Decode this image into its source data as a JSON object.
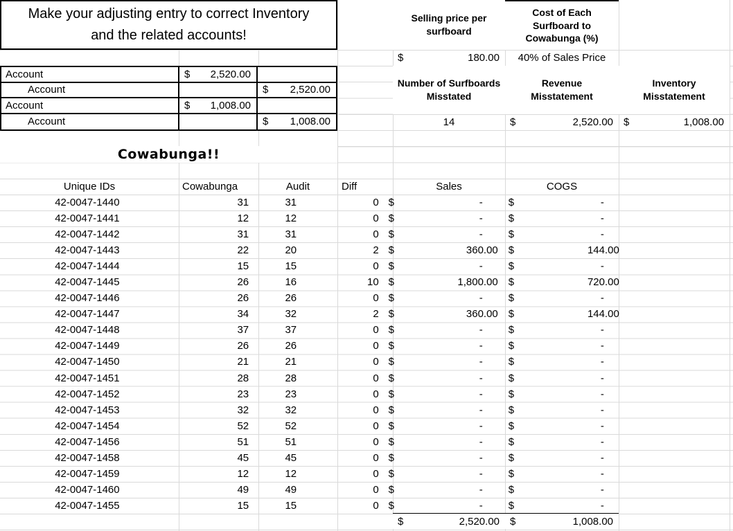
{
  "currency": "$",
  "title": {
    "line1": "Make your adjusting entry to correct Inventory",
    "line2": "and the related accounts!"
  },
  "selling_price": {
    "header": "Selling price per surfboard",
    "value": "180.00"
  },
  "cost": {
    "header": "Cost of Each Surfboard to Cowabunga (%)",
    "value": "40% of Sales Price"
  },
  "journal": {
    "entries": [
      {
        "account": "Account",
        "debit": "2,520.00",
        "credit": ""
      },
      {
        "account": "Account",
        "debit": "",
        "credit": "2,520.00"
      },
      {
        "account": "Account",
        "debit": "1,008.00",
        "credit": ""
      },
      {
        "account": "Account",
        "debit": "",
        "credit": "1,008.00"
      }
    ]
  },
  "misstatement": {
    "count_header": "Number of Surfboards Misstated",
    "count": "14",
    "revenue_header": "Revenue Misstatement",
    "revenue": "2,520.00",
    "inventory_header": "Inventory Misstatement",
    "inventory": "1,008.00"
  },
  "section_title": "Cowabunga!!",
  "table": {
    "headers": {
      "id": "Unique IDs",
      "cowabunga": "Cowabunga",
      "audit": "Audit",
      "diff": "Diff",
      "sales": "Sales",
      "cogs": "COGS"
    },
    "rows": [
      {
        "id": "42-0047-1440",
        "cowabunga": "31",
        "audit": "31",
        "diff": "0",
        "sales": "-",
        "cogs": "-"
      },
      {
        "id": "42-0047-1441",
        "cowabunga": "12",
        "audit": "12",
        "diff": "0",
        "sales": "-",
        "cogs": "-"
      },
      {
        "id": "42-0047-1442",
        "cowabunga": "31",
        "audit": "31",
        "diff": "0",
        "sales": "-",
        "cogs": "-"
      },
      {
        "id": "42-0047-1443",
        "cowabunga": "22",
        "audit": "20",
        "diff": "2",
        "sales": "360.00",
        "cogs": "144.00"
      },
      {
        "id": "42-0047-1444",
        "cowabunga": "15",
        "audit": "15",
        "diff": "0",
        "sales": "-",
        "cogs": "-"
      },
      {
        "id": "42-0047-1445",
        "cowabunga": "26",
        "audit": "16",
        "diff": "10",
        "sales": "1,800.00",
        "cogs": "720.00"
      },
      {
        "id": "42-0047-1446",
        "cowabunga": "26",
        "audit": "26",
        "diff": "0",
        "sales": "-",
        "cogs": "-"
      },
      {
        "id": "42-0047-1447",
        "cowabunga": "34",
        "audit": "32",
        "diff": "2",
        "sales": "360.00",
        "cogs": "144.00"
      },
      {
        "id": "42-0047-1448",
        "cowabunga": "37",
        "audit": "37",
        "diff": "0",
        "sales": "-",
        "cogs": "-"
      },
      {
        "id": "42-0047-1449",
        "cowabunga": "26",
        "audit": "26",
        "diff": "0",
        "sales": "-",
        "cogs": "-"
      },
      {
        "id": "42-0047-1450",
        "cowabunga": "21",
        "audit": "21",
        "diff": "0",
        "sales": "-",
        "cogs": "-"
      },
      {
        "id": "42-0047-1451",
        "cowabunga": "28",
        "audit": "28",
        "diff": "0",
        "sales": "-",
        "cogs": "-"
      },
      {
        "id": "42-0047-1452",
        "cowabunga": "23",
        "audit": "23",
        "diff": "0",
        "sales": "-",
        "cogs": "-"
      },
      {
        "id": "42-0047-1453",
        "cowabunga": "32",
        "audit": "32",
        "diff": "0",
        "sales": "-",
        "cogs": "-"
      },
      {
        "id": "42-0047-1454",
        "cowabunga": "52",
        "audit": "52",
        "diff": "0",
        "sales": "-",
        "cogs": "-"
      },
      {
        "id": "42-0047-1456",
        "cowabunga": "51",
        "audit": "51",
        "diff": "0",
        "sales": "-",
        "cogs": "-"
      },
      {
        "id": "42-0047-1458",
        "cowabunga": "45",
        "audit": "45",
        "diff": "0",
        "sales": "-",
        "cogs": "-"
      },
      {
        "id": "42-0047-1459",
        "cowabunga": "12",
        "audit": "12",
        "diff": "0",
        "sales": "-",
        "cogs": "-"
      },
      {
        "id": "42-0047-1460",
        "cowabunga": "49",
        "audit": "49",
        "diff": "0",
        "sales": "-",
        "cogs": "-"
      },
      {
        "id": "42-0047-1455",
        "cowabunga": "15",
        "audit": "15",
        "diff": "0",
        "sales": "-",
        "cogs": "-"
      }
    ],
    "totals": {
      "sales": "2,520.00",
      "cogs": "1,008.00"
    }
  }
}
